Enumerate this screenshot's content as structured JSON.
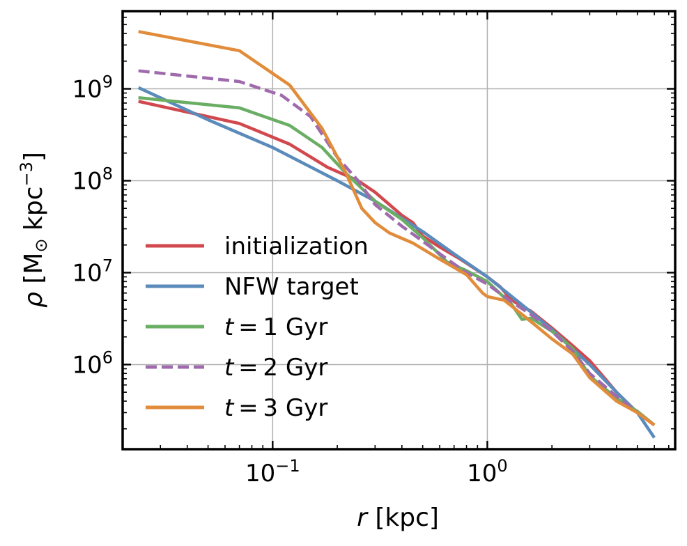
{
  "chart_data": {
    "type": "line",
    "xscale": "log",
    "yscale": "log",
    "xlabel_var": "r",
    "xlabel_unit": " [kpc]",
    "ylabel_var": "ρ",
    "ylabel_unit_prefix": " [M",
    "ylabel_unit_sub": "⊙",
    "ylabel_unit_mid": " kpc",
    "ylabel_unit_sup": "−3",
    "ylabel_unit_suffix": "]",
    "xlim": [
      0.02,
      7.5
    ],
    "ylim": [
      120000,
      7000000000
    ],
    "x_ticks": [
      {
        "value": 0.1,
        "base": "10",
        "exp": "−1"
      },
      {
        "value": 1,
        "base": "10",
        "exp": "0"
      }
    ],
    "y_ticks": [
      {
        "value": 1000000,
        "base": "10",
        "exp": "6"
      },
      {
        "value": 10000000,
        "base": "10",
        "exp": "7"
      },
      {
        "value": 100000000,
        "base": "10",
        "exp": "8"
      },
      {
        "value": 1000000000,
        "base": "10",
        "exp": "9"
      }
    ],
    "grid": true,
    "legend_position": "lower-left",
    "series": [
      {
        "name": "initialization",
        "color": "#d1494e",
        "dash": false,
        "points": [
          [
            0.0237,
            730000000
          ],
          [
            0.07,
            420000000
          ],
          [
            0.12,
            250000000
          ],
          [
            0.18,
            140000000
          ],
          [
            0.25,
            100000000
          ],
          [
            0.3,
            75000000
          ],
          [
            0.4,
            42000000
          ],
          [
            0.45,
            35000000
          ],
          [
            0.5,
            25000000
          ],
          [
            0.6,
            19000000
          ],
          [
            0.75,
            14000000
          ],
          [
            1.0,
            9000000
          ],
          [
            1.15,
            7000000
          ],
          [
            1.3,
            5000000
          ],
          [
            1.6,
            3800000
          ],
          [
            2.0,
            2500000
          ],
          [
            2.5,
            1600000
          ],
          [
            3.0,
            1100000
          ],
          [
            4.0,
            500000
          ],
          [
            5.0,
            300000
          ],
          [
            6.0,
            220000
          ]
        ]
      },
      {
        "name": "NFW target",
        "color": "#5b8bbb",
        "dash": false,
        "points": [
          [
            0.0237,
            1030000000
          ],
          [
            0.05,
            460000000
          ],
          [
            0.1,
            230000000
          ],
          [
            0.2,
            100000000
          ],
          [
            0.3,
            60000000
          ],
          [
            0.5,
            28000000
          ],
          [
            0.7,
            16000000
          ],
          [
            1.0,
            9000000
          ],
          [
            1.5,
            4200000
          ],
          [
            2.0,
            2400000
          ],
          [
            3.0,
            1000000
          ],
          [
            4.0,
            500000
          ],
          [
            5.0,
            300000
          ],
          [
            6.0,
            160000
          ]
        ]
      },
      {
        "name": "t = 1 Gyr",
        "color": "#6aae64",
        "dash": false,
        "points": [
          [
            0.0237,
            800000000
          ],
          [
            0.07,
            620000000
          ],
          [
            0.12,
            400000000
          ],
          [
            0.17,
            230000000
          ],
          [
            0.22,
            120000000
          ],
          [
            0.3,
            60000000
          ],
          [
            0.4,
            38000000
          ],
          [
            0.5,
            24000000
          ],
          [
            0.65,
            13000000
          ],
          [
            0.8,
            10500000
          ],
          [
            1.0,
            8000000
          ],
          [
            1.3,
            4500000
          ],
          [
            1.45,
            3100000
          ],
          [
            1.6,
            3200000
          ],
          [
            2.0,
            2300000
          ],
          [
            2.5,
            1500000
          ],
          [
            3.0,
            750000
          ],
          [
            4.0,
            430000
          ],
          [
            5.0,
            310000
          ],
          [
            6.0,
            220000
          ]
        ]
      },
      {
        "name": "t = 2 Gyr",
        "color": "#9f6bad",
        "dash": true,
        "points": [
          [
            0.0237,
            1570000000
          ],
          [
            0.07,
            1200000000
          ],
          [
            0.11,
            850000000
          ],
          [
            0.15,
            500000000
          ],
          [
            0.2,
            180000000
          ],
          [
            0.25,
            100000000
          ],
          [
            0.3,
            55000000
          ],
          [
            0.4,
            32000000
          ],
          [
            0.5,
            22000000
          ],
          [
            0.65,
            14000000
          ],
          [
            0.8,
            10000000
          ],
          [
            1.0,
            7500000
          ],
          [
            1.3,
            4800000
          ],
          [
            1.6,
            3500000
          ],
          [
            2.0,
            2300000
          ],
          [
            2.5,
            1400000
          ],
          [
            3.0,
            800000
          ],
          [
            4.0,
            450000
          ],
          [
            5.0,
            300000
          ],
          [
            6.0,
            220000
          ]
        ]
      },
      {
        "name": "t = 3 Gyr",
        "color": "#e18c3a",
        "dash": false,
        "points": [
          [
            0.0237,
            4200000000
          ],
          [
            0.07,
            2600000000
          ],
          [
            0.12,
            1100000000
          ],
          [
            0.17,
            370000000
          ],
          [
            0.22,
            120000000
          ],
          [
            0.26,
            50000000
          ],
          [
            0.3,
            35000000
          ],
          [
            0.35,
            27000000
          ],
          [
            0.45,
            21000000
          ],
          [
            0.6,
            14000000
          ],
          [
            0.8,
            9500000
          ],
          [
            0.95,
            6000000
          ],
          [
            1.0,
            5500000
          ],
          [
            1.2,
            5000000
          ],
          [
            1.5,
            3300000
          ],
          [
            2.0,
            1900000
          ],
          [
            2.5,
            1300000
          ],
          [
            3.0,
            720000
          ],
          [
            4.0,
            400000
          ],
          [
            5.0,
            300000
          ],
          [
            6.0,
            220000
          ]
        ]
      }
    ]
  }
}
